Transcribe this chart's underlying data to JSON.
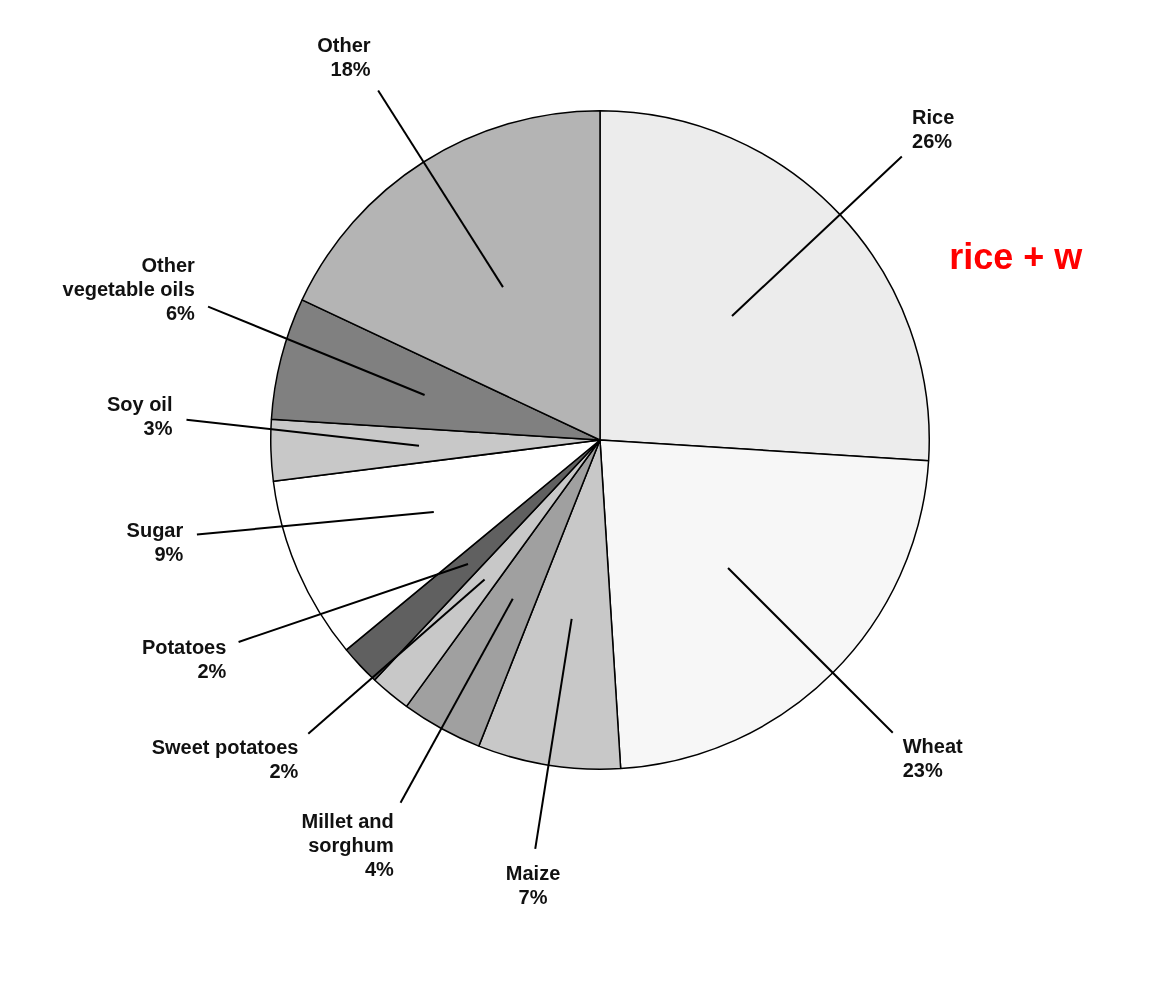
{
  "chart_data": {
    "type": "pie",
    "categories": [
      "Rice",
      "Wheat",
      "Maize",
      "Millet and sorghum",
      "Sweet potatoes",
      "Potatoes",
      "Sugar",
      "Soy oil",
      "Other vegetable oils",
      "Other"
    ],
    "values": [
      26,
      23,
      7,
      4,
      2,
      2,
      9,
      3,
      6,
      18
    ],
    "value_labels": [
      "26%",
      "23%",
      "7%",
      "4%",
      "2%",
      "2%",
      "9%",
      "3%",
      "6%",
      "18%"
    ],
    "colors": [
      "#ececec",
      "#f7f7f7",
      "#c8c8c8",
      "#a0a0a0",
      "#c8c8c8",
      "#606060",
      "#ffffff",
      "#c8c8c8",
      "#808080",
      "#b4b4b4"
    ],
    "annotations": [
      "rice + w"
    ],
    "legend": false
  }
}
